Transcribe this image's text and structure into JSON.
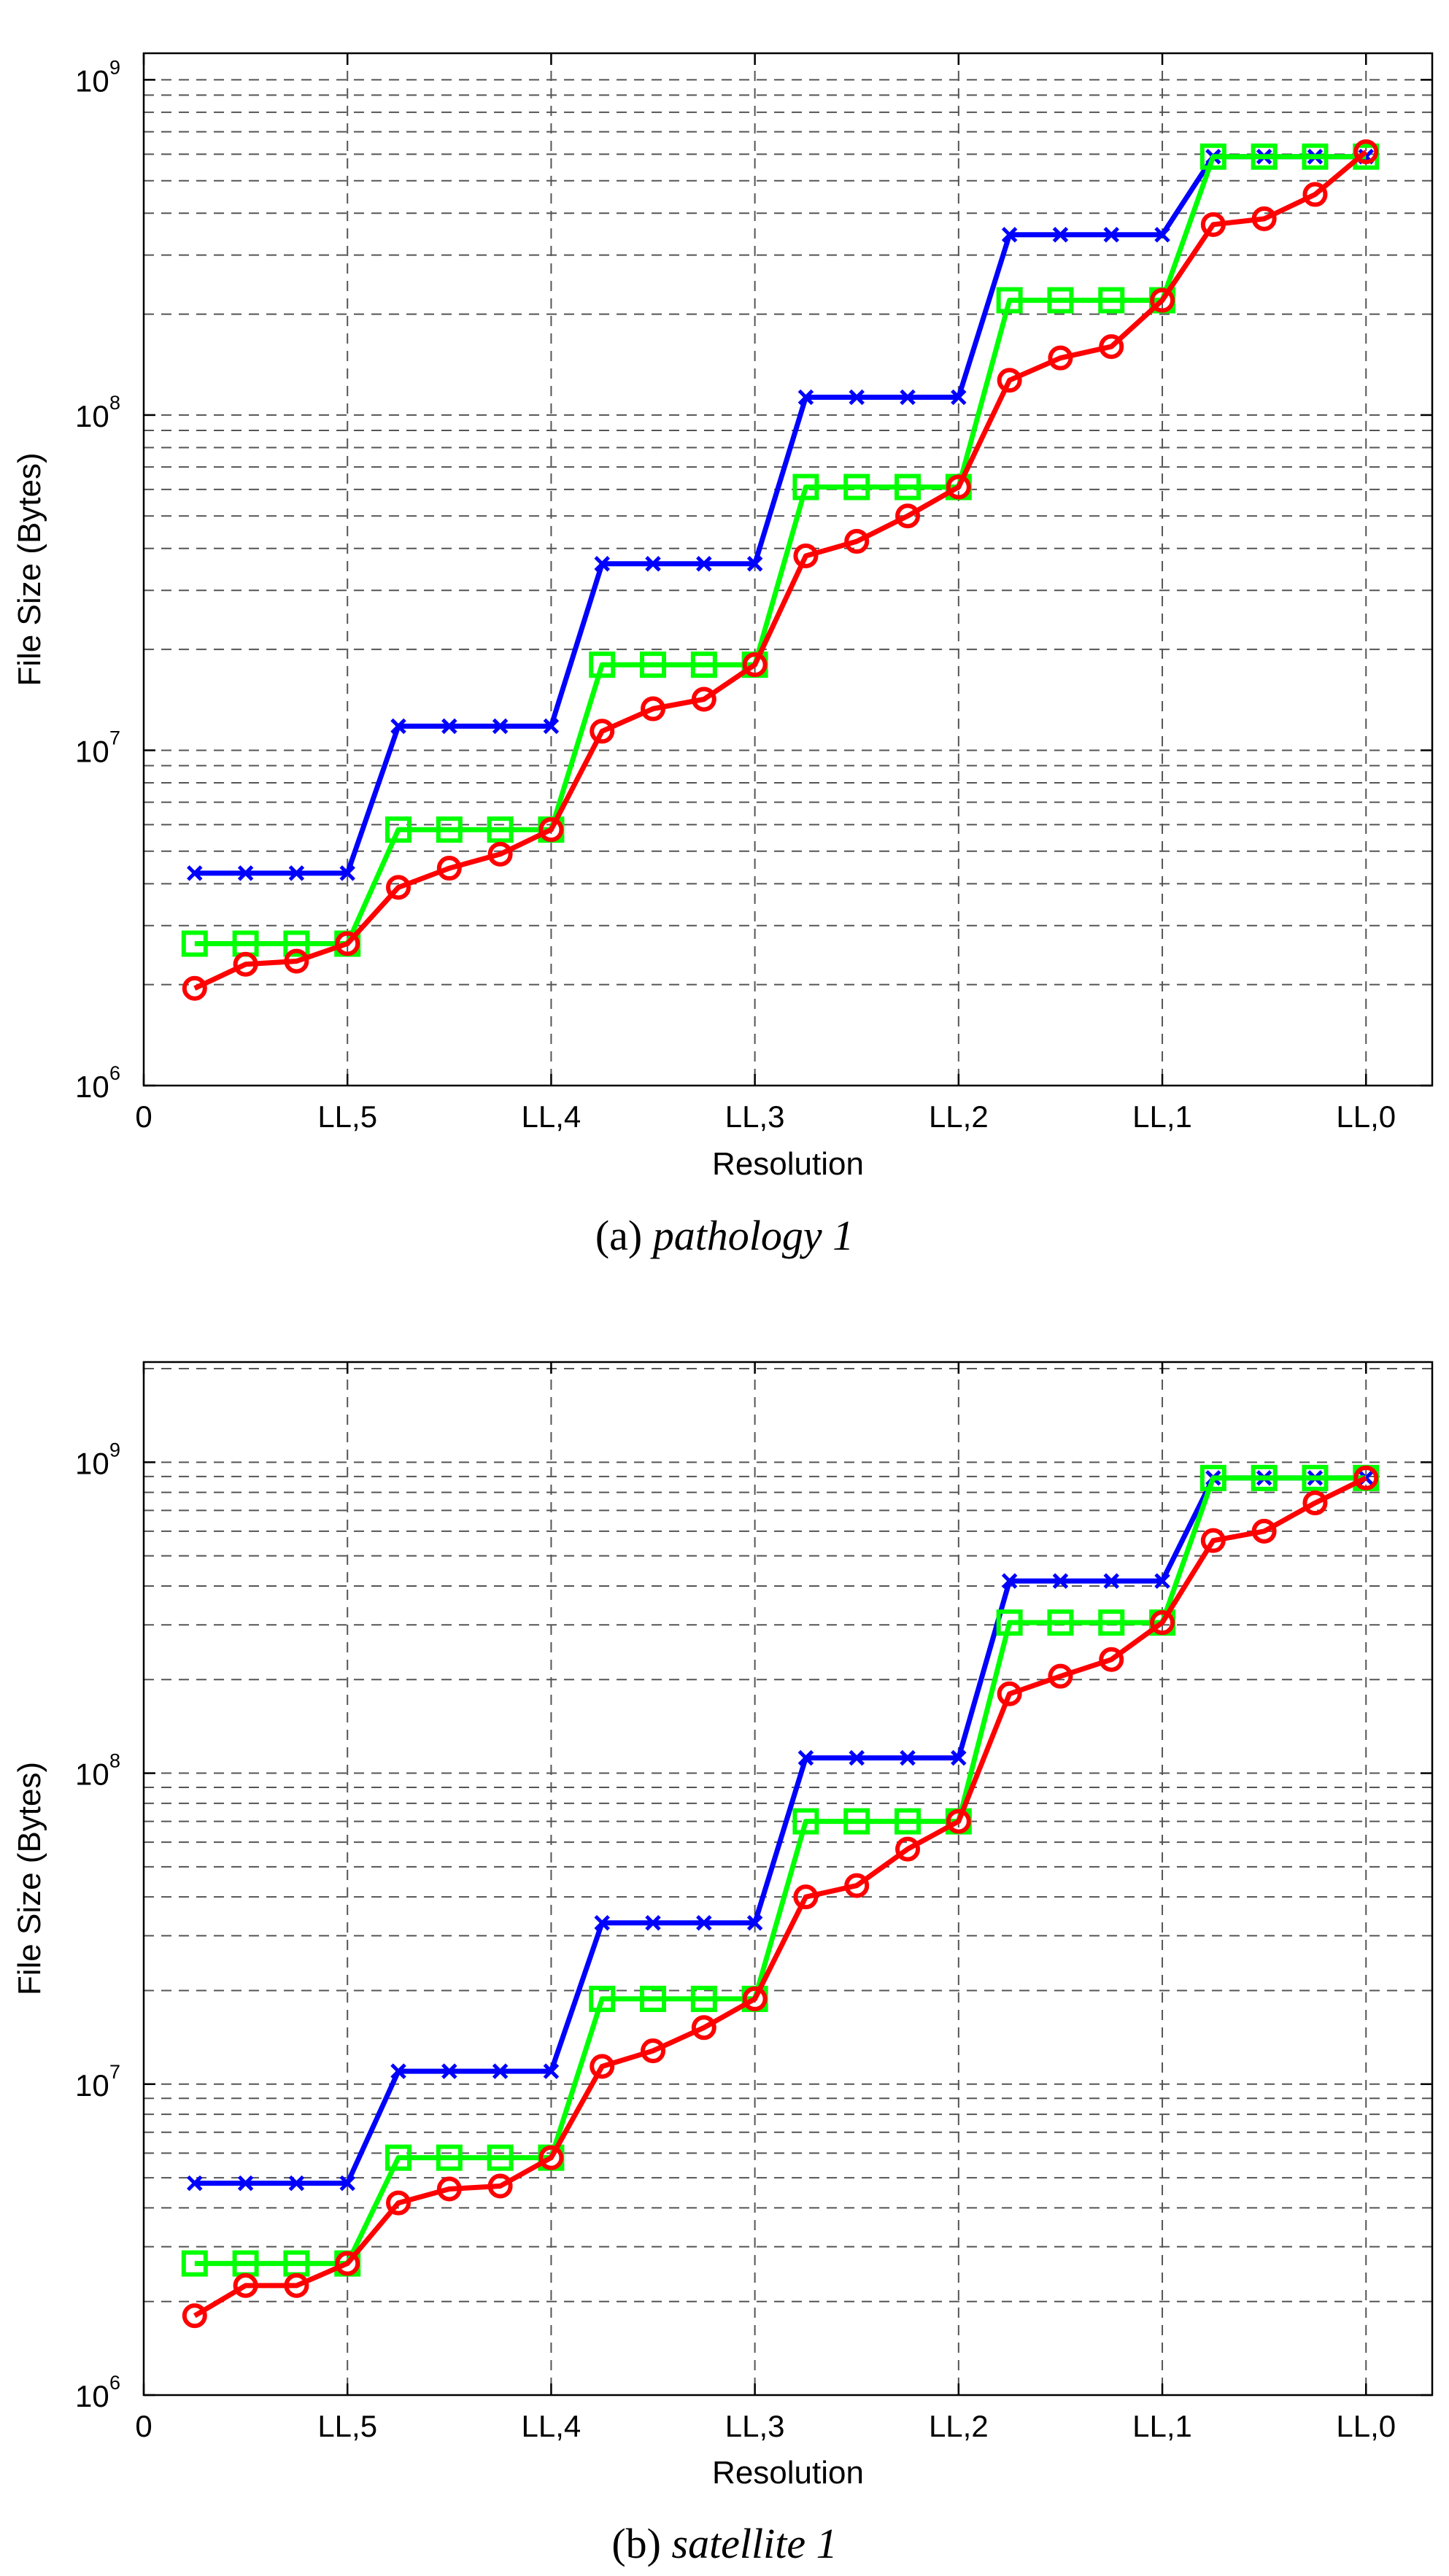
{
  "chart_data": [
    {
      "type": "line",
      "caption_prefix": "(a) ",
      "caption_name": "pathology 1",
      "xlabel": "Resolution",
      "ylabel": "File Size (Bytes)",
      "x_ticks": [
        0,
        4,
        8,
        12,
        16,
        20,
        24
      ],
      "x_tick_labels": [
        "0",
        "LL,5",
        "LL,4",
        "LL,3",
        "LL,2",
        "LL,1",
        "LL,0"
      ],
      "xlim": [
        0,
        25.3
      ],
      "yscale": "log",
      "ylim": [
        1000000,
        1200000000
      ],
      "y_ticks": [
        1000000,
        10000000,
        100000000,
        1000000000
      ],
      "y_tick_base": "10",
      "y_tick_exps": [
        "6",
        "7",
        "8",
        "9"
      ],
      "grid": "dashed",
      "x": [
        1,
        2,
        3,
        4,
        5,
        6,
        7,
        8,
        9,
        10,
        11,
        12,
        13,
        14,
        15,
        16,
        17,
        18,
        19,
        20,
        21,
        22,
        23,
        24
      ],
      "series": [
        {
          "name": "blue",
          "color": "#0000ff",
          "marker": "x",
          "values": [
            4300000,
            4300000,
            4300000,
            4300000,
            11800000,
            11800000,
            11800000,
            11800000,
            36000000,
            36000000,
            36000000,
            36000000,
            113000000,
            113000000,
            113000000,
            113000000,
            345000000,
            345000000,
            345000000,
            345000000,
            590000000,
            590000000,
            590000000,
            590000000
          ]
        },
        {
          "name": "green",
          "color": "#00ff00",
          "marker": "square",
          "values": [
            2650000,
            2650000,
            2650000,
            2650000,
            5800000,
            5800000,
            5800000,
            5800000,
            18000000,
            18000000,
            18000000,
            18000000,
            61000000,
            61000000,
            61000000,
            61000000,
            220000000,
            220000000,
            220000000,
            220000000,
            590000000,
            590000000,
            590000000,
            590000000
          ]
        },
        {
          "name": "red",
          "color": "#ff0000",
          "marker": "circle",
          "values": [
            1950000,
            2300000,
            2350000,
            2650000,
            3900000,
            4450000,
            4900000,
            5800000,
            11400000,
            13300000,
            14200000,
            18000000,
            38000000,
            42000000,
            50000000,
            61000000,
            127000000,
            148000000,
            160000000,
            220000000,
            370000000,
            385000000,
            455000000,
            610000000
          ]
        }
      ]
    },
    {
      "type": "line",
      "caption_prefix": "(b) ",
      "caption_name": "satellite 1",
      "xlabel": "Resolution",
      "ylabel": "File Size (Bytes)",
      "x_ticks": [
        0,
        4,
        8,
        12,
        16,
        20,
        24
      ],
      "x_tick_labels": [
        "0",
        "LL,5",
        "LL,4",
        "LL,3",
        "LL,2",
        "LL,1",
        "LL,0"
      ],
      "xlim": [
        0,
        25.3
      ],
      "yscale": "log",
      "ylim": [
        1000000,
        2100000000
      ],
      "y_ticks": [
        1000000,
        10000000,
        100000000,
        1000000000
      ],
      "y_tick_base": "10",
      "y_tick_exps": [
        "6",
        "7",
        "8",
        "9"
      ],
      "grid": "dashed",
      "x": [
        1,
        2,
        3,
        4,
        5,
        6,
        7,
        8,
        9,
        10,
        11,
        12,
        13,
        14,
        15,
        16,
        17,
        18,
        19,
        20,
        21,
        22,
        23,
        24
      ],
      "series": [
        {
          "name": "blue",
          "color": "#0000ff",
          "marker": "x",
          "values": [
            4800000,
            4800000,
            4800000,
            4800000,
            11000000,
            11000000,
            11000000,
            11000000,
            33000000,
            33000000,
            33000000,
            33000000,
            112000000,
            112000000,
            112000000,
            112000000,
            415000000,
            415000000,
            415000000,
            415000000,
            890000000,
            890000000,
            890000000,
            890000000
          ]
        },
        {
          "name": "green",
          "color": "#00ff00",
          "marker": "square",
          "values": [
            2650000,
            2650000,
            2650000,
            2650000,
            5800000,
            5800000,
            5800000,
            5800000,
            18800000,
            18800000,
            18800000,
            18800000,
            70000000,
            70000000,
            70000000,
            70000000,
            305000000,
            305000000,
            305000000,
            305000000,
            890000000,
            890000000,
            890000000,
            890000000
          ]
        },
        {
          "name": "red",
          "color": "#ff0000",
          "marker": "circle",
          "values": [
            1800000,
            2250000,
            2250000,
            2650000,
            4150000,
            4600000,
            4700000,
            5800000,
            11400000,
            12800000,
            15200000,
            18800000,
            40000000,
            43500000,
            57000000,
            70000000,
            180000000,
            205000000,
            232000000,
            305000000,
            560000000,
            600000000,
            740000000,
            890000000
          ]
        }
      ]
    }
  ]
}
